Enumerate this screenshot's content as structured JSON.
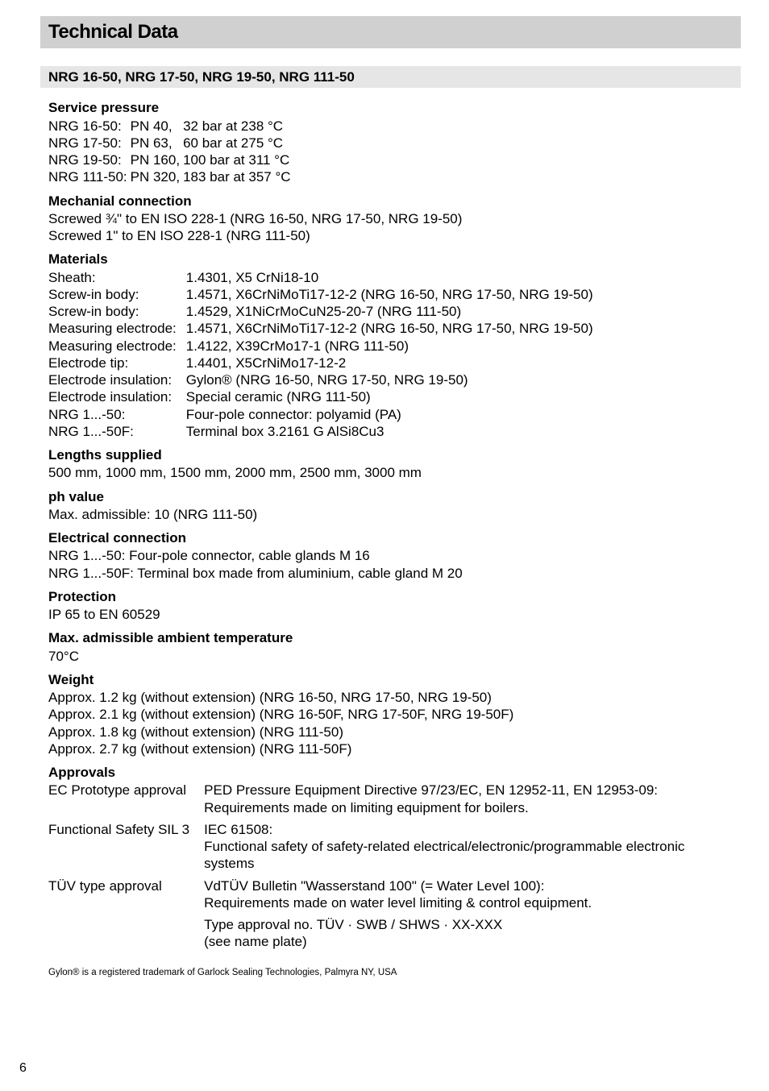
{
  "page": {
    "number": "6",
    "section_title": "Technical Data",
    "subsection_title": "NRG 16-50, NRG 17-50, NRG 19-50, NRG 111-50"
  },
  "service_pressure": {
    "label": "Service pressure",
    "rows": [
      {
        "model": "NRG 16-50:",
        "pn": "PN   40,",
        "val": "32 bar at 238 °C"
      },
      {
        "model": "NRG 17-50:",
        "pn": "PN   63,",
        "val": "60 bar at 275 °C"
      },
      {
        "model": "NRG 19-50:",
        "pn": "PN 160,",
        "val": "100 bar at 311 °C"
      },
      {
        "model": "NRG 111-50:",
        "pn": "PN 320,",
        "val": "183 bar at 357 °C"
      }
    ]
  },
  "mechanial": {
    "label": "Mechanial connection",
    "line1": "Screwed ¾\" to EN ISO 228-1 (NRG 16-50, NRG 17-50, NRG 19-50)",
    "line2": "Screwed 1\" to EN ISO 228-1 (NRG 111-50)"
  },
  "materials": {
    "label": "Materials",
    "rows": [
      {
        "k": "Sheath:",
        "v": "1.4301, X5 CrNi18-10"
      },
      {
        "k": "Screw-in body:",
        "v": "1.4571, X6CrNiMoTi17-12-2 (NRG 16-50, NRG 17-50, NRG 19-50)"
      },
      {
        "k": "Screw-in body:",
        "v": "1.4529, X1NiCrMoCuN25-20-7 (NRG 111-50)"
      },
      {
        "k": "Measuring electrode:",
        "v": "1.4571, X6CrNiMoTi17-12-2 (NRG 16-50, NRG 17-50, NRG 19-50)"
      },
      {
        "k": "Measuring electrode:",
        "v": "1.4122, X39CrMo17-1 (NRG 111-50)"
      },
      {
        "k": "Electrode tip:",
        "v": "1.4401, X5CrNiMo17-12-2"
      },
      {
        "k": "Electrode insulation:",
        "v": "Gylon® (NRG 16-50, NRG 17-50, NRG 19-50)"
      },
      {
        "k": "Electrode insulation:",
        "v": "Special ceramic (NRG 111-50)"
      },
      {
        "k": "NRG 1...-50:",
        "v": "Four-pole connector: polyamid (PA)"
      },
      {
        "k": "NRG 1...-50F:",
        "v": "Terminal box 3.2161 G AlSi8Cu3"
      }
    ]
  },
  "lengths": {
    "label": "Lengths supplied",
    "text": "500 mm, 1000 mm, 1500 mm, 2000 mm, 2500 mm, 3000 mm"
  },
  "ph": {
    "label": "ph value",
    "text": "Max. admissible: 10 (NRG 111-50)"
  },
  "electrical": {
    "label": "Electrical connection",
    "line1": "NRG 1...-50: Four-pole connector, cable glands M 16",
    "line2": "NRG 1...-50F: Terminal box made from aluminium, cable gland M 20"
  },
  "protection": {
    "label": "Protection",
    "text": "IP 65 to EN 60529"
  },
  "maxtemp": {
    "label": "Max. admissible ambient temperature",
    "text": "70°C"
  },
  "weight": {
    "label": "Weight",
    "line1": "Approx. 1.2 kg (without extension) (NRG 16-50, NRG 17-50, NRG 19-50)",
    "line2": "Approx. 2.1 kg (without extension) (NRG 16-50F, NRG 17-50F, NRG 19-50F)",
    "line3": "Approx. 1.8 kg (without extension) (NRG 111-50)",
    "line4": "Approx. 2.7 kg (without extension) (NRG 111-50F)"
  },
  "approvals": {
    "label": "Approvals",
    "rows": [
      {
        "k": "EC Prototype approval",
        "v": "PED Pressure Equipment Directive 97/23/EC, EN 12952-11, EN 12953-09: Requirements made on limiting equipment for boilers."
      },
      {
        "k": "Functional Safety SIL 3",
        "v": "IEC 61508:\nFunctional safety of safety-related electrical/electronic/programmable electronic systems"
      },
      {
        "k": "TÜV type approval",
        "v": "VdTÜV Bulletin \"Wasserstand 100\" (= Water Level 100):\nRequirements made on water level limiting & control equipment."
      },
      {
        "k": "",
        "v": "Type approval no. TÜV · SWB / SHWS · XX-XXX\n(see name plate)"
      }
    ]
  },
  "footnote": "Gylon®  is a registered trademark of Garlock Sealing Technologies, Palmyra NY, USA"
}
